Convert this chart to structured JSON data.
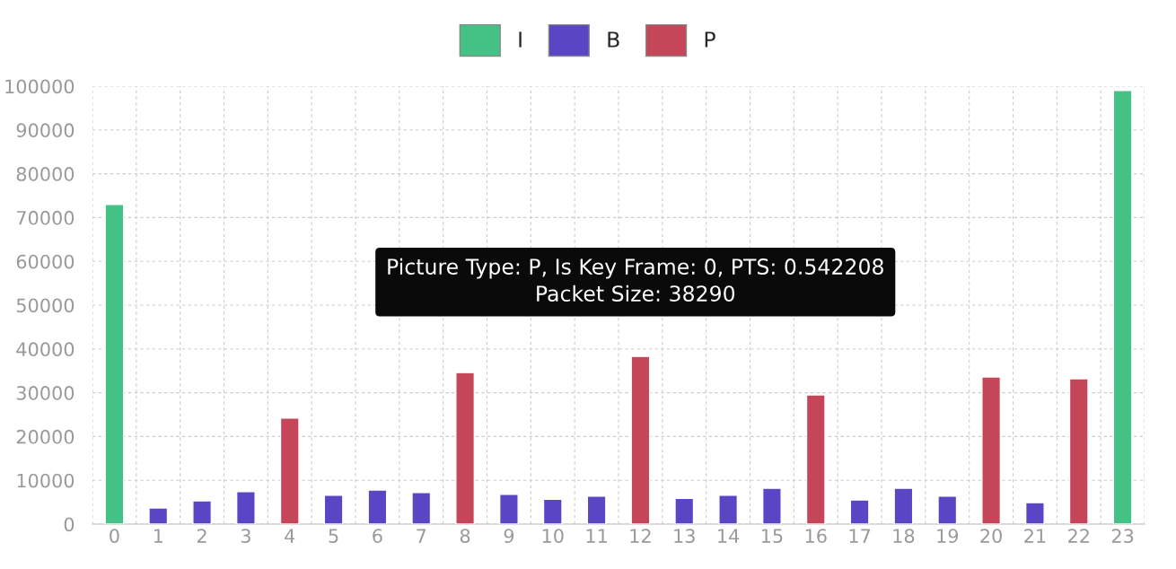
{
  "chart_data": {
    "type": "bar",
    "categories": [
      "0",
      "1",
      "2",
      "3",
      "4",
      "5",
      "6",
      "7",
      "8",
      "9",
      "10",
      "11",
      "12",
      "13",
      "14",
      "15",
      "16",
      "17",
      "18",
      "19",
      "20",
      "21",
      "22",
      "23"
    ],
    "series": [
      {
        "name": "I",
        "color": "#44c185",
        "values": [
          73000,
          null,
          null,
          null,
          null,
          null,
          null,
          null,
          null,
          null,
          null,
          null,
          null,
          null,
          null,
          null,
          null,
          null,
          null,
          null,
          null,
          null,
          null,
          99000
        ]
      },
      {
        "name": "B",
        "color": "#5a45c4",
        "values": [
          null,
          3700,
          5300,
          7400,
          null,
          6600,
          7800,
          7200,
          null,
          6800,
          5700,
          6400,
          null,
          5900,
          6600,
          8200,
          null,
          5500,
          8200,
          6400,
          null,
          4900,
          null,
          null
        ]
      },
      {
        "name": "P",
        "color": "#c44658",
        "values": [
          null,
          null,
          null,
          null,
          24200,
          null,
          null,
          null,
          34600,
          null,
          null,
          null,
          38290,
          null,
          null,
          null,
          29500,
          null,
          null,
          null,
          33600,
          null,
          33200,
          null
        ]
      }
    ],
    "ylim": [
      0,
      100000
    ],
    "yticks": [
      0,
      10000,
      20000,
      30000,
      40000,
      50000,
      60000,
      70000,
      80000,
      90000,
      100000
    ],
    "grid": true,
    "legend": "top",
    "annotations": [
      "Picture Type: P, Is Key Frame: 0, PTS: 0.542208\nPacket Size: 38290"
    ]
  }
}
